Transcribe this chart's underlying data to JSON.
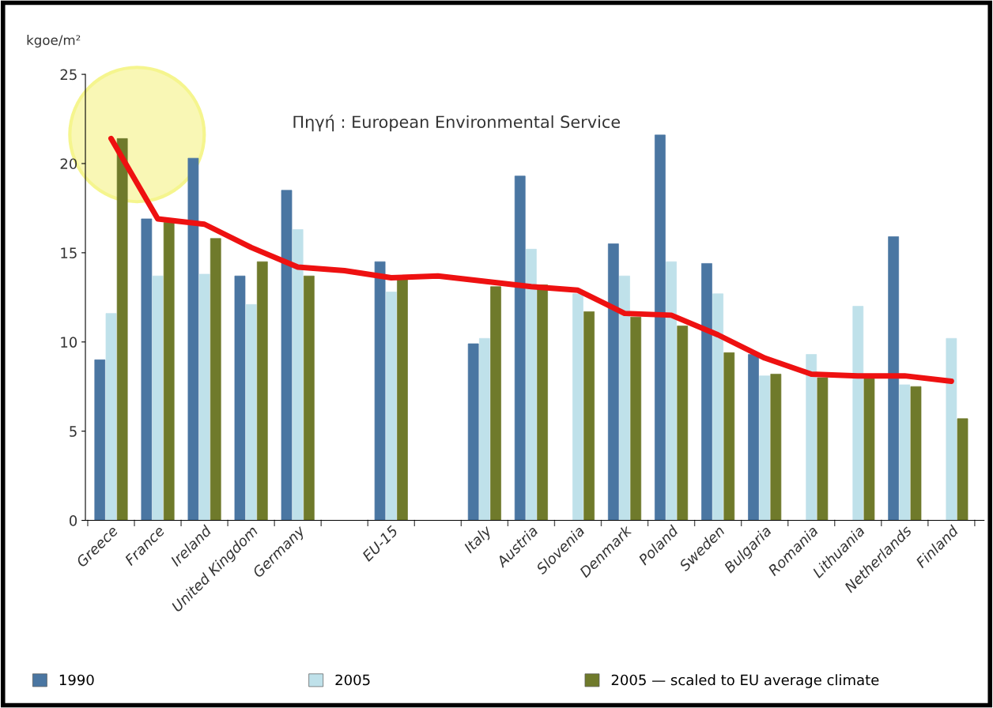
{
  "chart_data": {
    "type": "bar",
    "categories": [
      "Greece",
      "France",
      "Ireland",
      "United Kingdom",
      "Germany",
      null,
      "EU-15",
      null,
      "Italy",
      "Austria",
      "Slovenia",
      "Denmark",
      "Poland",
      "Sweden",
      "Bulgaria",
      "Romania",
      "Lithuania",
      "Netherlands",
      "Finland"
    ],
    "series": [
      {
        "name": "1990",
        "color": "#4a76a2",
        "values": [
          9.0,
          16.9,
          20.3,
          13.7,
          18.5,
          null,
          14.5,
          null,
          9.9,
          19.3,
          null,
          15.5,
          21.6,
          14.4,
          9.3,
          null,
          null,
          15.9,
          null
        ]
      },
      {
        "name": "2005",
        "color": "#bfe1ea",
        "values": [
          11.6,
          13.7,
          13.8,
          12.1,
          16.3,
          null,
          12.8,
          null,
          10.2,
          15.2,
          12.7,
          13.7,
          14.5,
          12.7,
          8.1,
          9.3,
          12.0,
          7.6,
          10.2
        ]
      },
      {
        "name": "2005 — scaled to EU average climate",
        "color": "#6f7a2b",
        "values": [
          21.4,
          16.7,
          15.8,
          14.5,
          13.7,
          null,
          13.5,
          null,
          13.1,
          13.2,
          11.7,
          11.4,
          10.9,
          9.4,
          8.2,
          8.0,
          8.0,
          7.5,
          5.7
        ]
      },
      {
        "type": "line",
        "color": "#ee1111",
        "values": [
          21.4,
          16.9,
          16.6,
          15.3,
          14.2,
          14.0,
          13.6,
          13.7,
          13.4,
          13.1,
          12.9,
          11.6,
          11.5,
          10.4,
          9.1,
          8.2,
          8.1,
          8.1,
          7.8
        ]
      }
    ],
    "ylabel": "kgoe/m²",
    "ylim": [
      0,
      25
    ],
    "yticks": [
      0,
      5,
      10,
      15,
      20,
      25
    ],
    "annotations": [
      "Πηγή : European Environmental Service"
    ],
    "legend": "bottom",
    "grid": false
  }
}
